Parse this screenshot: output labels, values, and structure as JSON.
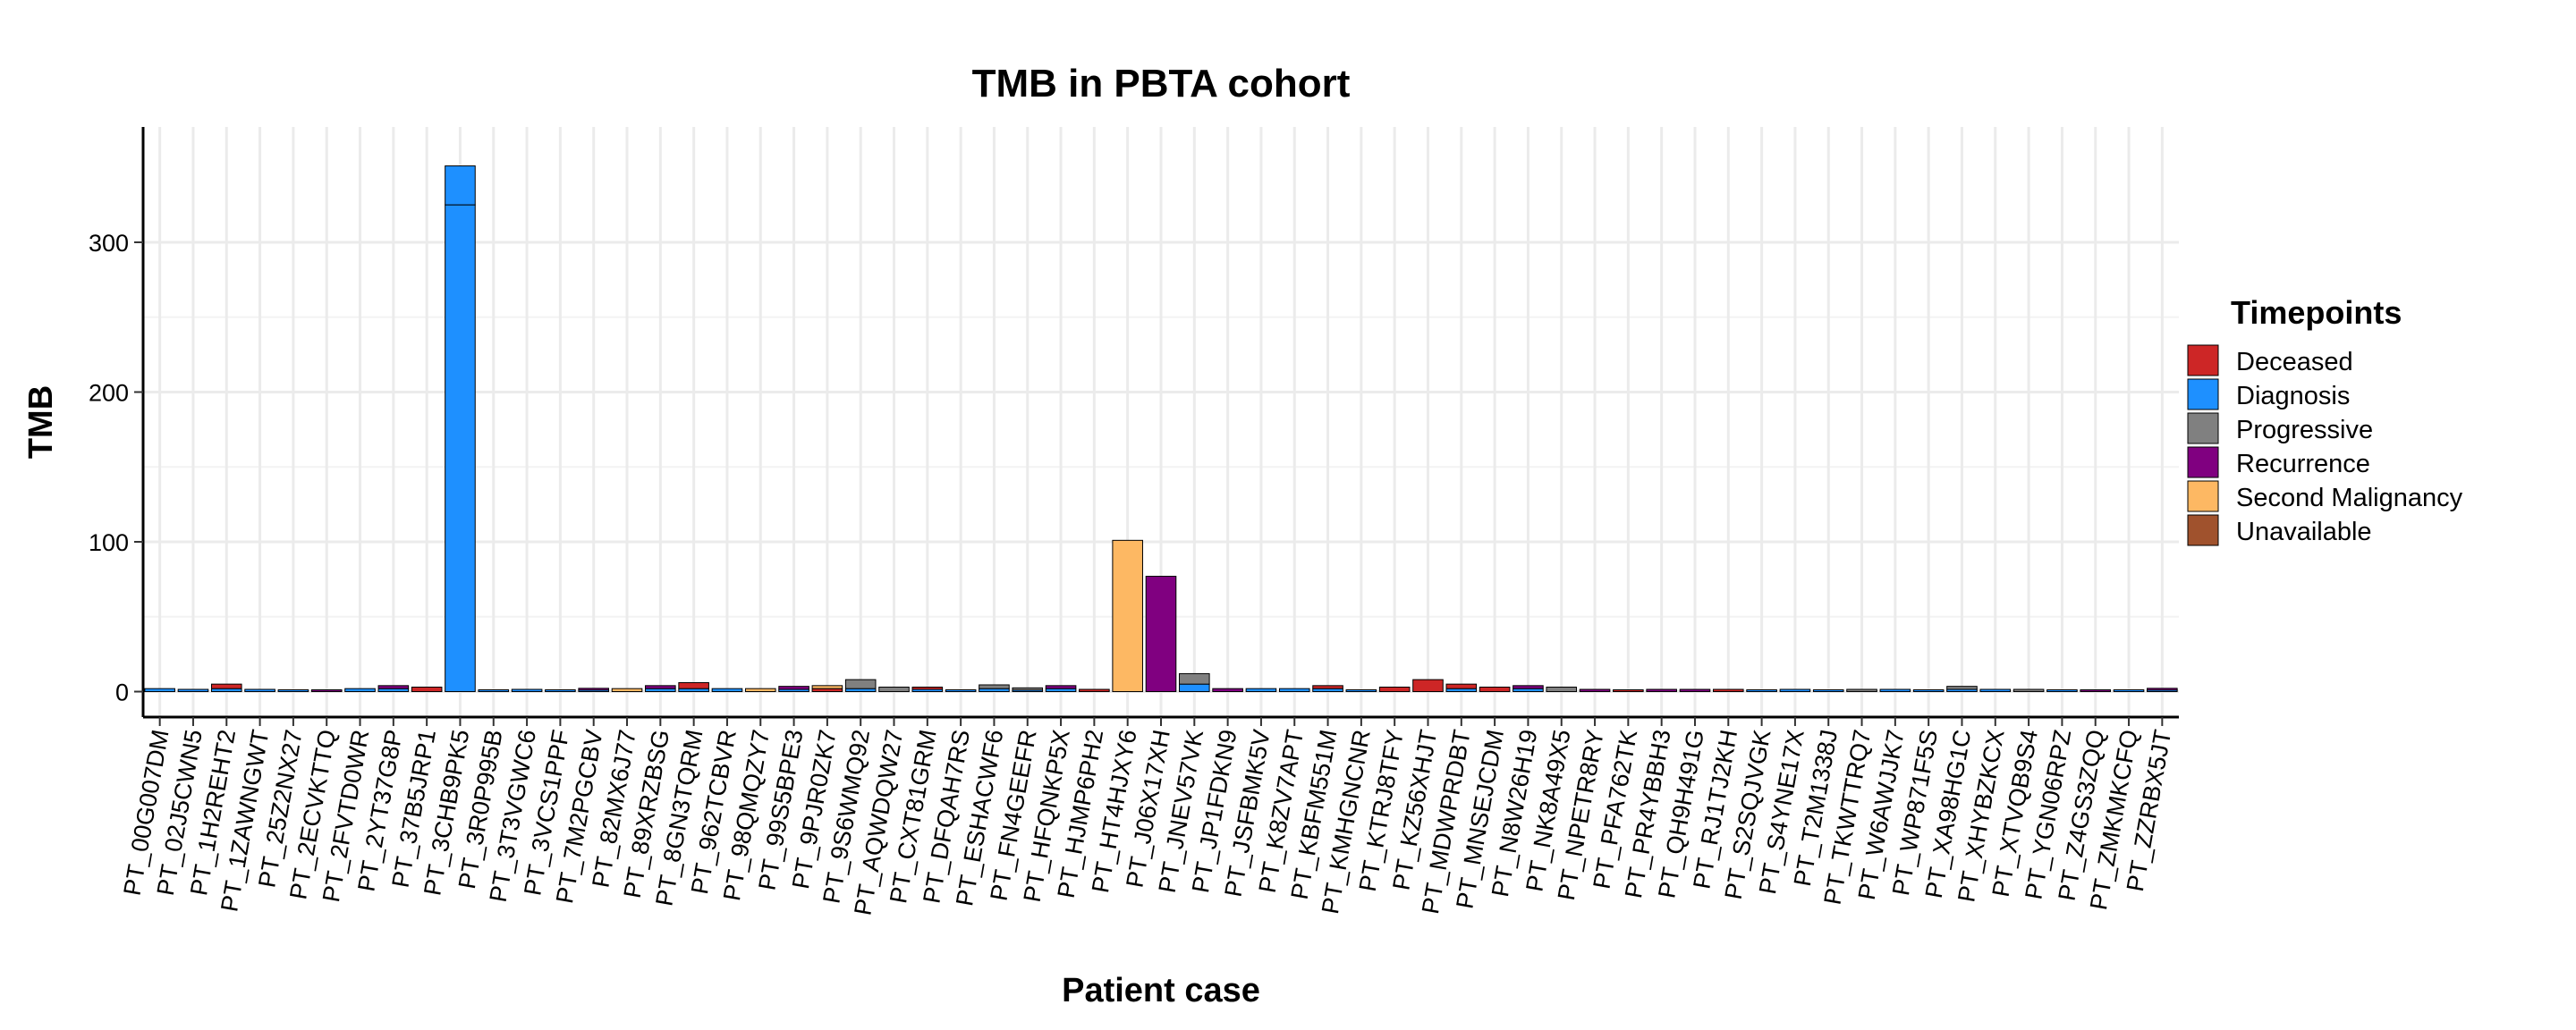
{
  "chart_data": {
    "type": "bar",
    "title": "TMB in PBTA cohort",
    "xlabel": "Patient case",
    "ylabel": "TMB",
    "ylim": [
      -17,
      377
    ],
    "yticks": [
      0,
      100,
      200,
      300
    ],
    "grid": true,
    "legend": {
      "title": "Timepoints",
      "position": "right",
      "entries": [
        "Deceased",
        "Diagnosis",
        "Progressive",
        "Recurrence",
        "Second Malignancy",
        "Unavailable"
      ]
    },
    "colors": {
      "Deceased": "#CD2626",
      "Diagnosis": "#1E90FF",
      "Progressive": "#808080",
      "Recurrence": "#800080",
      "Second Malignancy": "#FDB863",
      "Unavailable": "#A0522D"
    },
    "categories": [
      "PT_00G007DM",
      "PT_02J5CWN5",
      "PT_1H2REHT2",
      "PT_1ZAWNGWT",
      "PT_25Z2NX27",
      "PT_2ECVKTTQ",
      "PT_2FVTD0WR",
      "PT_2YT37G8P",
      "PT_37B5JRP1",
      "PT_3CHB9PK5",
      "PT_3R0P995B",
      "PT_3T3VGWC6",
      "PT_3VCS1PPF",
      "PT_7M2PGCBV",
      "PT_82MX6J77",
      "PT_89XRZBSG",
      "PT_8GN3TQRM",
      "PT_962TCBVR",
      "PT_98QMQZY7",
      "PT_99S5BPE3",
      "PT_9PJR0ZK7",
      "PT_9S6WMQ92",
      "PT_AQWDQW27",
      "PT_CXT81GRM",
      "PT_DFQAH7RS",
      "PT_ESHACWF6",
      "PT_FN4GEEFR",
      "PT_HFQNKP5X",
      "PT_HJMP6PH2",
      "PT_HT4HJXY6",
      "PT_J06X17XH",
      "PT_JNEV57VK",
      "PT_JP1FDKN9",
      "PT_JSFBMK5V",
      "PT_K8ZV7APT",
      "PT_KBFM551M",
      "PT_KMHGNCNR",
      "PT_KTRJ8TFY",
      "PT_KZ56XHJT",
      "PT_MDWPRDBT",
      "PT_MNSEJCDM",
      "PT_N8W26H19",
      "PT_NK8A49X5",
      "PT_NPETR8RY",
      "PT_PFA762TK",
      "PT_PR4YBBH3",
      "PT_QH9H491G",
      "PT_RJ1TJ2KH",
      "PT_S2SQJVGK",
      "PT_S4YNE17X",
      "PT_T2M1338J",
      "PT_TKWTTRQ7",
      "PT_W6AWJJK7",
      "PT_WP871F5S",
      "PT_XA98HG1C",
      "PT_XHYBZKCX",
      "PT_XTVQB9S4",
      "PT_YGN06RPZ",
      "PT_Z4GS3ZQQ",
      "PT_ZMKMKCFQ",
      "PT_ZZRBX5JT"
    ],
    "bars": [
      {
        "patient": "PT_00G007DM",
        "segments": [
          {
            "timepoint": "Diagnosis",
            "value": 2
          }
        ]
      },
      {
        "patient": "PT_02J5CWN5",
        "segments": [
          {
            "timepoint": "Diagnosis",
            "value": 1.5
          }
        ]
      },
      {
        "patient": "PT_1H2REHT2",
        "segments": [
          {
            "timepoint": "Diagnosis",
            "value": 2
          },
          {
            "timepoint": "Deceased",
            "value": 3
          }
        ]
      },
      {
        "patient": "PT_1ZAWNGWT",
        "segments": [
          {
            "timepoint": "Diagnosis",
            "value": 1.5
          }
        ]
      },
      {
        "patient": "PT_25Z2NX27",
        "segments": [
          {
            "timepoint": "Diagnosis",
            "value": 1
          }
        ]
      },
      {
        "patient": "PT_2ECVKTTQ",
        "segments": [
          {
            "timepoint": "Recurrence",
            "value": 1
          }
        ]
      },
      {
        "patient": "PT_2FVTD0WR",
        "segments": [
          {
            "timepoint": "Diagnosis",
            "value": 2
          }
        ]
      },
      {
        "patient": "PT_2YT37G8P",
        "segments": [
          {
            "timepoint": "Diagnosis",
            "value": 2
          },
          {
            "timepoint": "Recurrence",
            "value": 2
          }
        ]
      },
      {
        "patient": "PT_37B5JRP1",
        "segments": [
          {
            "timepoint": "Deceased",
            "value": 3
          }
        ]
      },
      {
        "patient": "PT_3CHB9PK5",
        "segments": [
          {
            "timepoint": "Diagnosis",
            "value": 325
          },
          {
            "timepoint": "Diagnosis",
            "value": 26
          }
        ]
      },
      {
        "patient": "PT_3R0P995B",
        "segments": [
          {
            "timepoint": "Diagnosis",
            "value": 1
          }
        ]
      },
      {
        "patient": "PT_3T3VGWC6",
        "segments": [
          {
            "timepoint": "Diagnosis",
            "value": 1.5
          }
        ]
      },
      {
        "patient": "PT_3VCS1PPF",
        "segments": [
          {
            "timepoint": "Diagnosis",
            "value": 1
          }
        ]
      },
      {
        "patient": "PT_7M2PGCBV",
        "segments": [
          {
            "timepoint": "Diagnosis",
            "value": 1
          },
          {
            "timepoint": "Recurrence",
            "value": 1
          }
        ]
      },
      {
        "patient": "PT_82MX6J77",
        "segments": [
          {
            "timepoint": "Second Malignancy",
            "value": 2
          }
        ]
      },
      {
        "patient": "PT_89XRZBSG",
        "segments": [
          {
            "timepoint": "Diagnosis",
            "value": 2
          },
          {
            "timepoint": "Recurrence",
            "value": 2
          }
        ]
      },
      {
        "patient": "PT_8GN3TQRM",
        "segments": [
          {
            "timepoint": "Diagnosis",
            "value": 2
          },
          {
            "timepoint": "Deceased",
            "value": 4
          }
        ]
      },
      {
        "patient": "PT_962TCBVR",
        "segments": [
          {
            "timepoint": "Diagnosis",
            "value": 2
          }
        ]
      },
      {
        "patient": "PT_98QMQZY7",
        "segments": [
          {
            "timepoint": "Second Malignancy",
            "value": 2
          }
        ]
      },
      {
        "patient": "PT_99S5BPE3",
        "segments": [
          {
            "timepoint": "Diagnosis",
            "value": 1.5
          },
          {
            "timepoint": "Recurrence",
            "value": 2
          }
        ]
      },
      {
        "patient": "PT_9PJR0ZK7",
        "segments": [
          {
            "timepoint": "Deceased",
            "value": 2
          },
          {
            "timepoint": "Second Malignancy",
            "value": 2
          }
        ]
      },
      {
        "patient": "PT_9S6WMQ92",
        "segments": [
          {
            "timepoint": "Diagnosis",
            "value": 2
          },
          {
            "timepoint": "Progressive",
            "value": 6
          }
        ]
      },
      {
        "patient": "PT_AQWDQW27",
        "segments": [
          {
            "timepoint": "Progressive",
            "value": 3
          }
        ]
      },
      {
        "patient": "PT_CXT81GRM",
        "segments": [
          {
            "timepoint": "Diagnosis",
            "value": 1.5
          },
          {
            "timepoint": "Deceased",
            "value": 1.5
          }
        ]
      },
      {
        "patient": "PT_DFQAH7RS",
        "segments": [
          {
            "timepoint": "Diagnosis",
            "value": 1
          }
        ]
      },
      {
        "patient": "PT_ESHACWF6",
        "segments": [
          {
            "timepoint": "Diagnosis",
            "value": 2
          },
          {
            "timepoint": "Progressive",
            "value": 2.5
          }
        ]
      },
      {
        "patient": "PT_FN4GEEFR",
        "segments": [
          {
            "timepoint": "Diagnosis",
            "value": 1
          },
          {
            "timepoint": "Progressive",
            "value": 1.5
          }
        ]
      },
      {
        "patient": "PT_HFQNKP5X",
        "segments": [
          {
            "timepoint": "Diagnosis",
            "value": 2
          },
          {
            "timepoint": "Recurrence",
            "value": 2
          }
        ]
      },
      {
        "patient": "PT_HJMP6PH2",
        "segments": [
          {
            "timepoint": "Deceased",
            "value": 1.5
          }
        ]
      },
      {
        "patient": "PT_HT4HJXY6",
        "segments": [
          {
            "timepoint": "Second Malignancy",
            "value": 101
          }
        ]
      },
      {
        "patient": "PT_J06X17XH",
        "segments": [
          {
            "timepoint": "Recurrence",
            "value": 77
          }
        ]
      },
      {
        "patient": "PT_JNEV57VK",
        "segments": [
          {
            "timepoint": "Diagnosis",
            "value": 5
          },
          {
            "timepoint": "Progressive",
            "value": 7
          }
        ]
      },
      {
        "patient": "PT_JP1FDKN9",
        "segments": [
          {
            "timepoint": "Recurrence",
            "value": 2
          }
        ]
      },
      {
        "patient": "PT_JSFBMK5V",
        "segments": [
          {
            "timepoint": "Diagnosis",
            "value": 2
          }
        ]
      },
      {
        "patient": "PT_K8ZV7APT",
        "segments": [
          {
            "timepoint": "Diagnosis",
            "value": 2
          }
        ]
      },
      {
        "patient": "PT_KBFM551M",
        "segments": [
          {
            "timepoint": "Diagnosis",
            "value": 2
          },
          {
            "timepoint": "Deceased",
            "value": 2
          }
        ]
      },
      {
        "patient": "PT_KMHGNCNR",
        "segments": [
          {
            "timepoint": "Diagnosis",
            "value": 1
          }
        ]
      },
      {
        "patient": "PT_KTRJ8TFY",
        "segments": [
          {
            "timepoint": "Deceased",
            "value": 3
          }
        ]
      },
      {
        "patient": "PT_KZ56XHJT",
        "segments": [
          {
            "timepoint": "Deceased",
            "value": 8
          }
        ]
      },
      {
        "patient": "PT_MDWPRDBT",
        "segments": [
          {
            "timepoint": "Diagnosis",
            "value": 2
          },
          {
            "timepoint": "Deceased",
            "value": 3
          }
        ]
      },
      {
        "patient": "PT_MNSEJCDM",
        "segments": [
          {
            "timepoint": "Deceased",
            "value": 3
          }
        ]
      },
      {
        "patient": "PT_N8W26H19",
        "segments": [
          {
            "timepoint": "Diagnosis",
            "value": 2
          },
          {
            "timepoint": "Recurrence",
            "value": 2
          }
        ]
      },
      {
        "patient": "PT_NK8A49X5",
        "segments": [
          {
            "timepoint": "Progressive",
            "value": 3
          }
        ]
      },
      {
        "patient": "PT_NPETR8RY",
        "segments": [
          {
            "timepoint": "Recurrence",
            "value": 1.5
          }
        ]
      },
      {
        "patient": "PT_PFA762TK",
        "segments": [
          {
            "timepoint": "Deceased",
            "value": 1
          }
        ]
      },
      {
        "patient": "PT_PR4YBBH3",
        "segments": [
          {
            "timepoint": "Recurrence",
            "value": 1.5
          }
        ]
      },
      {
        "patient": "PT_QH9H491G",
        "segments": [
          {
            "timepoint": "Recurrence",
            "value": 1.5
          }
        ]
      },
      {
        "patient": "PT_RJ1TJ2KH",
        "segments": [
          {
            "timepoint": "Deceased",
            "value": 1.5
          }
        ]
      },
      {
        "patient": "PT_S2SQJVGK",
        "segments": [
          {
            "timepoint": "Diagnosis",
            "value": 1
          }
        ]
      },
      {
        "patient": "PT_S4YNE17X",
        "segments": [
          {
            "timepoint": "Diagnosis",
            "value": 1.5
          }
        ]
      },
      {
        "patient": "PT_T2M1338J",
        "segments": [
          {
            "timepoint": "Diagnosis",
            "value": 1
          }
        ]
      },
      {
        "patient": "PT_TKWTTRQ7",
        "segments": [
          {
            "timepoint": "Progressive",
            "value": 1.5
          }
        ]
      },
      {
        "patient": "PT_W6AWJJK7",
        "segments": [
          {
            "timepoint": "Diagnosis",
            "value": 1.5
          }
        ]
      },
      {
        "patient": "PT_WP871F5S",
        "segments": [
          {
            "timepoint": "Diagnosis",
            "value": 1
          }
        ]
      },
      {
        "patient": "PT_XA98HG1C",
        "segments": [
          {
            "timepoint": "Diagnosis",
            "value": 1.5
          },
          {
            "timepoint": "Progressive",
            "value": 2
          }
        ]
      },
      {
        "patient": "PT_XHYBZKCX",
        "segments": [
          {
            "timepoint": "Diagnosis",
            "value": 1.5
          }
        ]
      },
      {
        "patient": "PT_XTVQB9S4",
        "segments": [
          {
            "timepoint": "Progressive",
            "value": 1.5
          }
        ]
      },
      {
        "patient": "PT_YGN06RPZ",
        "segments": [
          {
            "timepoint": "Diagnosis",
            "value": 1
          }
        ]
      },
      {
        "patient": "PT_Z4GS3ZQQ",
        "segments": [
          {
            "timepoint": "Recurrence",
            "value": 1
          }
        ]
      },
      {
        "patient": "PT_ZMKMKCFQ",
        "segments": [
          {
            "timepoint": "Diagnosis",
            "value": 1
          }
        ]
      },
      {
        "patient": "PT_ZZRBX5JT",
        "segments": [
          {
            "timepoint": "Diagnosis",
            "value": 1
          },
          {
            "timepoint": "Recurrence",
            "value": 1
          }
        ]
      }
    ]
  }
}
